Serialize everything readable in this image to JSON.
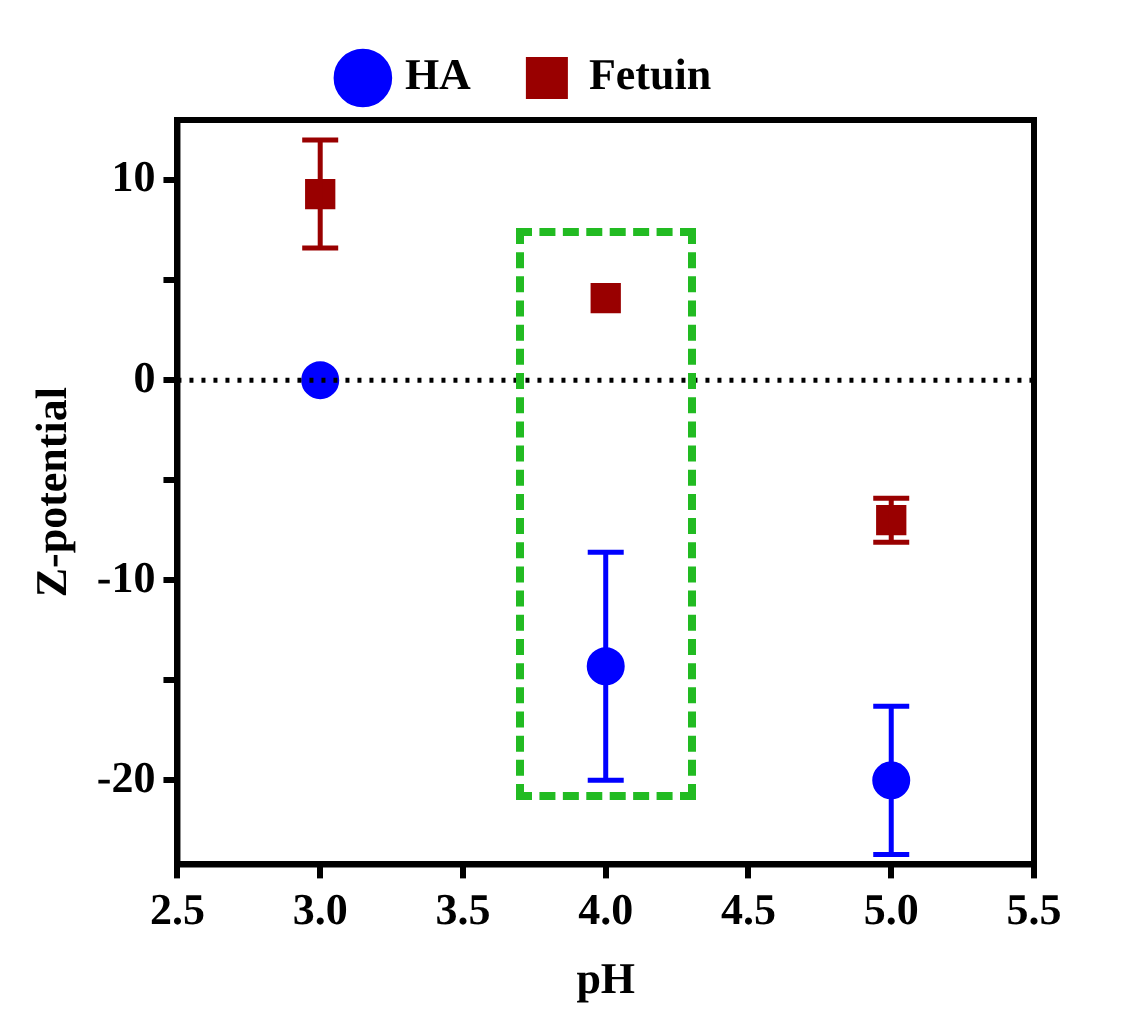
{
  "chart_data": {
    "type": "scatter",
    "xlabel": "pH",
    "ylabel": "Z-potential",
    "x": [
      3.0,
      4.0,
      5.0
    ],
    "series": [
      {
        "name": "HA",
        "color": "#0000ff",
        "marker": "circle",
        "values": [
          0,
          -14.3,
          -20.0
        ],
        "errors": [
          null,
          5.7,
          3.7
        ]
      },
      {
        "name": "Fetuin",
        "color": "#990000",
        "marker": "square",
        "values": [
          9.3,
          4.1,
          -7.0
        ],
        "errors": [
          2.7,
          null,
          1.1
        ]
      }
    ],
    "xlim": [
      2.5,
      5.5
    ],
    "xticks": [
      {
        "value": 2.5,
        "label": "2.5"
      },
      {
        "value": 3.0,
        "label": "3.0"
      },
      {
        "value": 3.5,
        "label": "3.5"
      },
      {
        "value": 4.0,
        "label": "4.0"
      },
      {
        "value": 4.5,
        "label": "4.5"
      },
      {
        "value": 5.0,
        "label": "5.0"
      },
      {
        "value": 5.5,
        "label": "5.5"
      }
    ],
    "ylim": [
      -24.2,
      13
    ],
    "yticks": [
      -20,
      {
        "value": -15,
        "label": null
      },
      -10,
      {
        "value": -5,
        "label": null
      },
      0,
      {
        "value": 5,
        "label": null
      },
      10
    ],
    "ref_lines": [
      {
        "axis": "y",
        "value": 0,
        "line_style": "dotted",
        "color": "#000000"
      }
    ],
    "grid": false,
    "legend": "top"
  }
}
